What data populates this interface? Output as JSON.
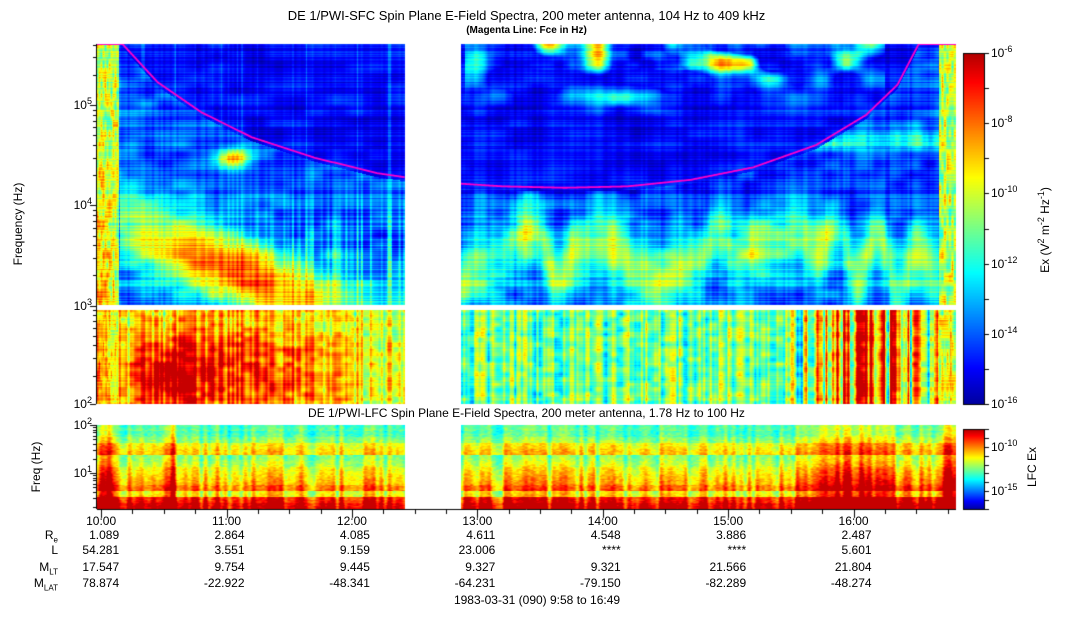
{
  "title": "DE 1/PWI-SFC  Spin Plane E-Field Spectra, 200 meter antenna, 104 Hz to 409 kHz",
  "subtitle": "(Magenta Line: Fce in Hz)",
  "footer": "1983-03-31 (090) 9:58 to 16:49",
  "chart_data": [
    {
      "type": "heatmap",
      "id": "sfc",
      "title": "DE 1/PWI-SFC  Spin Plane E-Field Spectra, 200 meter antenna, 104 Hz to 409 kHz",
      "subtitle": "(Magenta Line: Fce in Hz)",
      "ylabel": "Frequency (Hz)",
      "y_scale": "log",
      "y_range_hz": [
        104,
        409000
      ],
      "y_tick_exponents": [
        5,
        4,
        3,
        2
      ],
      "x_range_hours": [
        9.967,
        16.817
      ],
      "x_range_labels": [
        "9:58",
        "16:49"
      ],
      "data_gap_hours": [
        12.42,
        12.87
      ],
      "band_break_hz": [
        902,
        1012
      ],
      "colorbar": {
        "label": "Ex (V2 m-2 Hz-1)",
        "label_segments": [
          {
            "t": "Ex (V"
          },
          {
            "sup": "2"
          },
          {
            "t": " m"
          },
          {
            "sup": "-2"
          },
          {
            "t": " Hz"
          },
          {
            "sup": "-1"
          },
          {
            "t": ")"
          }
        ],
        "range_exponents": [
          -6,
          -16
        ],
        "labeled_tick_exponents": [
          -6,
          -8,
          -10,
          -12,
          -14,
          -16
        ]
      },
      "fce_line": {
        "label": "Fce in Hz",
        "color": "#ff00cc",
        "points_hours_hz": [
          [
            10.17,
            409000
          ],
          [
            10.45,
            170000
          ],
          [
            10.8,
            85000
          ],
          [
            11.2,
            48000
          ],
          [
            11.7,
            30000
          ],
          [
            12.2,
            21000
          ],
          [
            12.7,
            17000
          ],
          [
            13.2,
            15500
          ],
          [
            13.7,
            15000
          ],
          [
            14.2,
            15500
          ],
          [
            14.7,
            18000
          ],
          [
            15.2,
            24000
          ],
          [
            15.7,
            40000
          ],
          [
            16.1,
            80000
          ],
          [
            16.35,
            160000
          ],
          [
            16.52,
            409000
          ]
        ]
      },
      "visual_notes": [
        "bright broadband column near perigee ~10:00 and near 16:40-16:49",
        "intense orange/red funnel 10:20-12:25 below ~4 kHz",
        "small bright emission spot near 11:00 at ~30 kHz",
        "green auroral hiss band 2-8 kHz after 13:00",
        "cyan band near 50 kHz and green patchy emissions above 100 kHz 13:00-16:00",
        "dark blue background above Fce line",
        "white vertical data gap ~12:25-12:55, white horizontal receiver band break near 1 kHz"
      ]
    },
    {
      "type": "heatmap",
      "id": "lfc",
      "title": "DE 1/PWI-LFC  Spin Plane E-Field Spectra, 200 meter antenna, 1.78 Hz to 100 Hz",
      "ylabel": "Freq (Hz)",
      "y_scale": "log",
      "y_range_hz": [
        1.78,
        100
      ],
      "y_tick_exponents": [
        2,
        1
      ],
      "x_range_hours": [
        9.967,
        16.817
      ],
      "data_gap_hours": [
        12.42,
        12.87
      ],
      "colorbar": {
        "label": "LFC Ex",
        "range_exponents": [
          -8,
          -17
        ],
        "labeled_tick_exponents": [
          -10,
          -15
        ]
      },
      "visual_notes": [
        "red/orange at lowest frequencies grading to green near 100 Hz",
        "red vertical bands near 10:00, 10:35, 15:45-16:30 and right edge",
        "white vertical data gap ~12:25-12:55"
      ]
    }
  ],
  "time_axis": {
    "tick_hours": [
      10,
      11,
      12,
      13,
      14,
      15,
      16
    ],
    "tick_labels": [
      "10:00",
      "11:00",
      "12:00",
      "13:00",
      "14:00",
      "15:00",
      "16:00"
    ],
    "minor_step_hours": 0.25
  },
  "ephemeris": {
    "rows": [
      {
        "key": "re",
        "label_main": "R",
        "label_sub": "e"
      },
      {
        "key": "l",
        "label_main": "L",
        "label_sub": ""
      },
      {
        "key": "mlt",
        "label_main": "M",
        "label_sub": "LT"
      },
      {
        "key": "mlat",
        "label_main": "M",
        "label_sub": "LAT"
      }
    ],
    "columns": [
      {
        "time": "10:00",
        "hours": 10,
        "re": "1.089",
        "l": "54.281",
        "mlt": "17.547",
        "mlat": "78.874"
      },
      {
        "time": "11:00",
        "hours": 11,
        "re": "2.864",
        "l": "3.551",
        "mlt": "9.754",
        "mlat": "-22.922"
      },
      {
        "time": "12:00",
        "hours": 12,
        "re": "4.085",
        "l": "9.159",
        "mlt": "9.445",
        "mlat": "-48.341"
      },
      {
        "time": "13:00",
        "hours": 13,
        "re": "4.611",
        "l": "23.006",
        "mlt": "9.327",
        "mlat": "-64.231"
      },
      {
        "time": "14:00",
        "hours": 14,
        "re": "4.548",
        "l": "****",
        "mlt": "9.321",
        "mlat": "-79.150"
      },
      {
        "time": "15:00",
        "hours": 15,
        "re": "3.886",
        "l": "****",
        "mlt": "21.566",
        "mlat": "-82.289"
      },
      {
        "time": "16:00",
        "hours": 16,
        "re": "2.487",
        "l": "5.601",
        "mlt": "21.804",
        "mlat": "-48.274"
      }
    ]
  }
}
